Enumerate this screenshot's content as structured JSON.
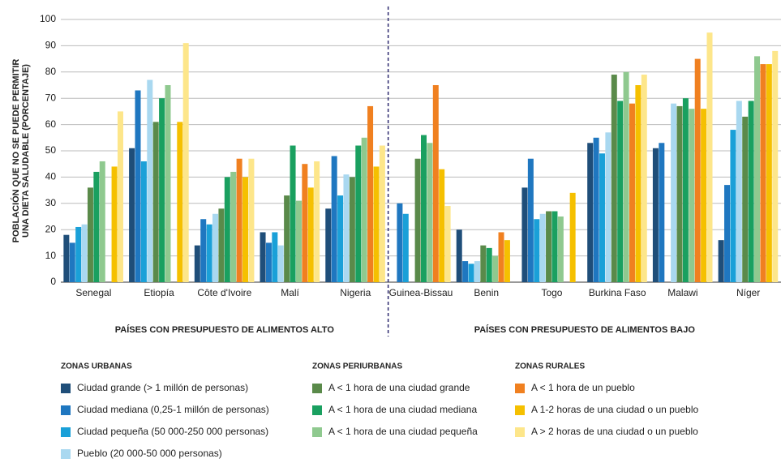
{
  "chart_data": {
    "type": "bar",
    "y_label": [
      "POBLACIÓN QUE NO SE PUEDE PERMITIR",
      "UNA DIETA SALUDABLE (PORCENTAJE)"
    ],
    "categories": [
      "Senegal",
      "Etiopía",
      "Côte d'Ivoire",
      "Malí",
      "Nigeria",
      "Guinea-Bissau",
      "Benin",
      "Togo",
      "Burkina Faso",
      "Malawi",
      "Níger"
    ],
    "group_labels": [
      "PAÍSES CON PRESUPUESTO DE ALIMENTOS ALTO",
      "PAÍSES CON PRESUPUESTO DE ALIMENTOS BAJO"
    ],
    "legend_titles": [
      "ZONAS URBANAS",
      "ZONAS PERIURBANAS",
      "ZONAS RURALES"
    ],
    "series": [
      {
        "name": "Ciudad grande (> 1 millón de personas)",
        "color": "#1f4e79",
        "values": [
          18,
          51,
          14,
          19,
          28,
          null,
          20,
          36,
          53,
          51,
          16
        ]
      },
      {
        "name": "Ciudad mediana (0,25-1 millón de personas)",
        "color": "#1f77c0",
        "values": [
          15,
          73,
          24,
          15,
          48,
          30,
          8,
          47,
          55,
          53,
          37
        ]
      },
      {
        "name": "Ciudad pequeña (50 000-250 000 personas)",
        "color": "#1aa0d8",
        "values": [
          21,
          46,
          22,
          19,
          33,
          26,
          7,
          24,
          49,
          null,
          58
        ]
      },
      {
        "name": "Pueblo (20 000-50 000 personas)",
        "color": "#a9d8f0",
        "values": [
          22,
          77,
          26,
          14,
          41,
          null,
          8,
          26,
          57,
          68,
          69
        ]
      },
      {
        "name": "A < 1 hora de una ciudad grande",
        "color": "#5a8a4a",
        "values": [
          36,
          61,
          28,
          33,
          40,
          47,
          14,
          27,
          79,
          67,
          63
        ]
      },
      {
        "name": "A < 1 hora de una ciudad mediana",
        "color": "#1aa060",
        "values": [
          42,
          70,
          40,
          52,
          52,
          56,
          13,
          27,
          69,
          70,
          69
        ]
      },
      {
        "name": "A < 1 hora de una ciudad pequeña",
        "color": "#8fc98f",
        "values": [
          46,
          75,
          42,
          31,
          55,
          53,
          10,
          25,
          80,
          66,
          86
        ]
      },
      {
        "name": "A < 1 hora de un pueblo",
        "color": "#f08020",
        "values": [
          null,
          null,
          47,
          45,
          67,
          75,
          19,
          null,
          68,
          85,
          83
        ]
      },
      {
        "name": "A 1-2 horas de una ciudad o un pueblo",
        "color": "#f5c000",
        "values": [
          44,
          61,
          40,
          36,
          44,
          43,
          16,
          34,
          75,
          66,
          83
        ]
      },
      {
        "name": "A > 2 horas de una ciudad o un pueblo",
        "color": "#fde68a",
        "values": [
          65,
          91,
          47,
          46,
          52,
          29,
          null,
          null,
          79,
          95,
          88
        ]
      }
    ],
    "ylim": [
      0,
      100
    ],
    "yticks": [
      0,
      10,
      20,
      30,
      40,
      50,
      60,
      70,
      80,
      90,
      100
    ],
    "grid": true
  }
}
